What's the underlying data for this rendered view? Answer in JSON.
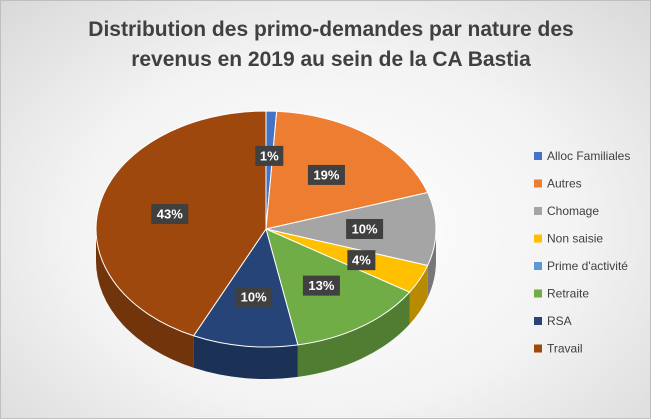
{
  "chart_data": {
    "type": "pie",
    "title": "Distribution des primo-demandes par nature des revenus en 2019 au sein de la CA Bastia",
    "categories": [
      "Alloc Familiales",
      "Autres",
      "Chomage",
      "Non saisie",
      "Prime d'activité",
      "Retraite",
      "RSA",
      "Travail"
    ],
    "values": [
      1,
      19,
      10,
      4,
      0,
      13,
      10,
      43
    ],
    "value_labels": [
      "1%",
      "19%",
      "10%",
      "4%",
      null,
      "13%",
      "10%",
      "43%"
    ],
    "colors": [
      "#4472c4",
      "#ed7d31",
      "#a5a5a5",
      "#ffc000",
      "#5b9bd5",
      "#70ad47",
      "#264478",
      "#9e480e"
    ],
    "legend": "right"
  }
}
